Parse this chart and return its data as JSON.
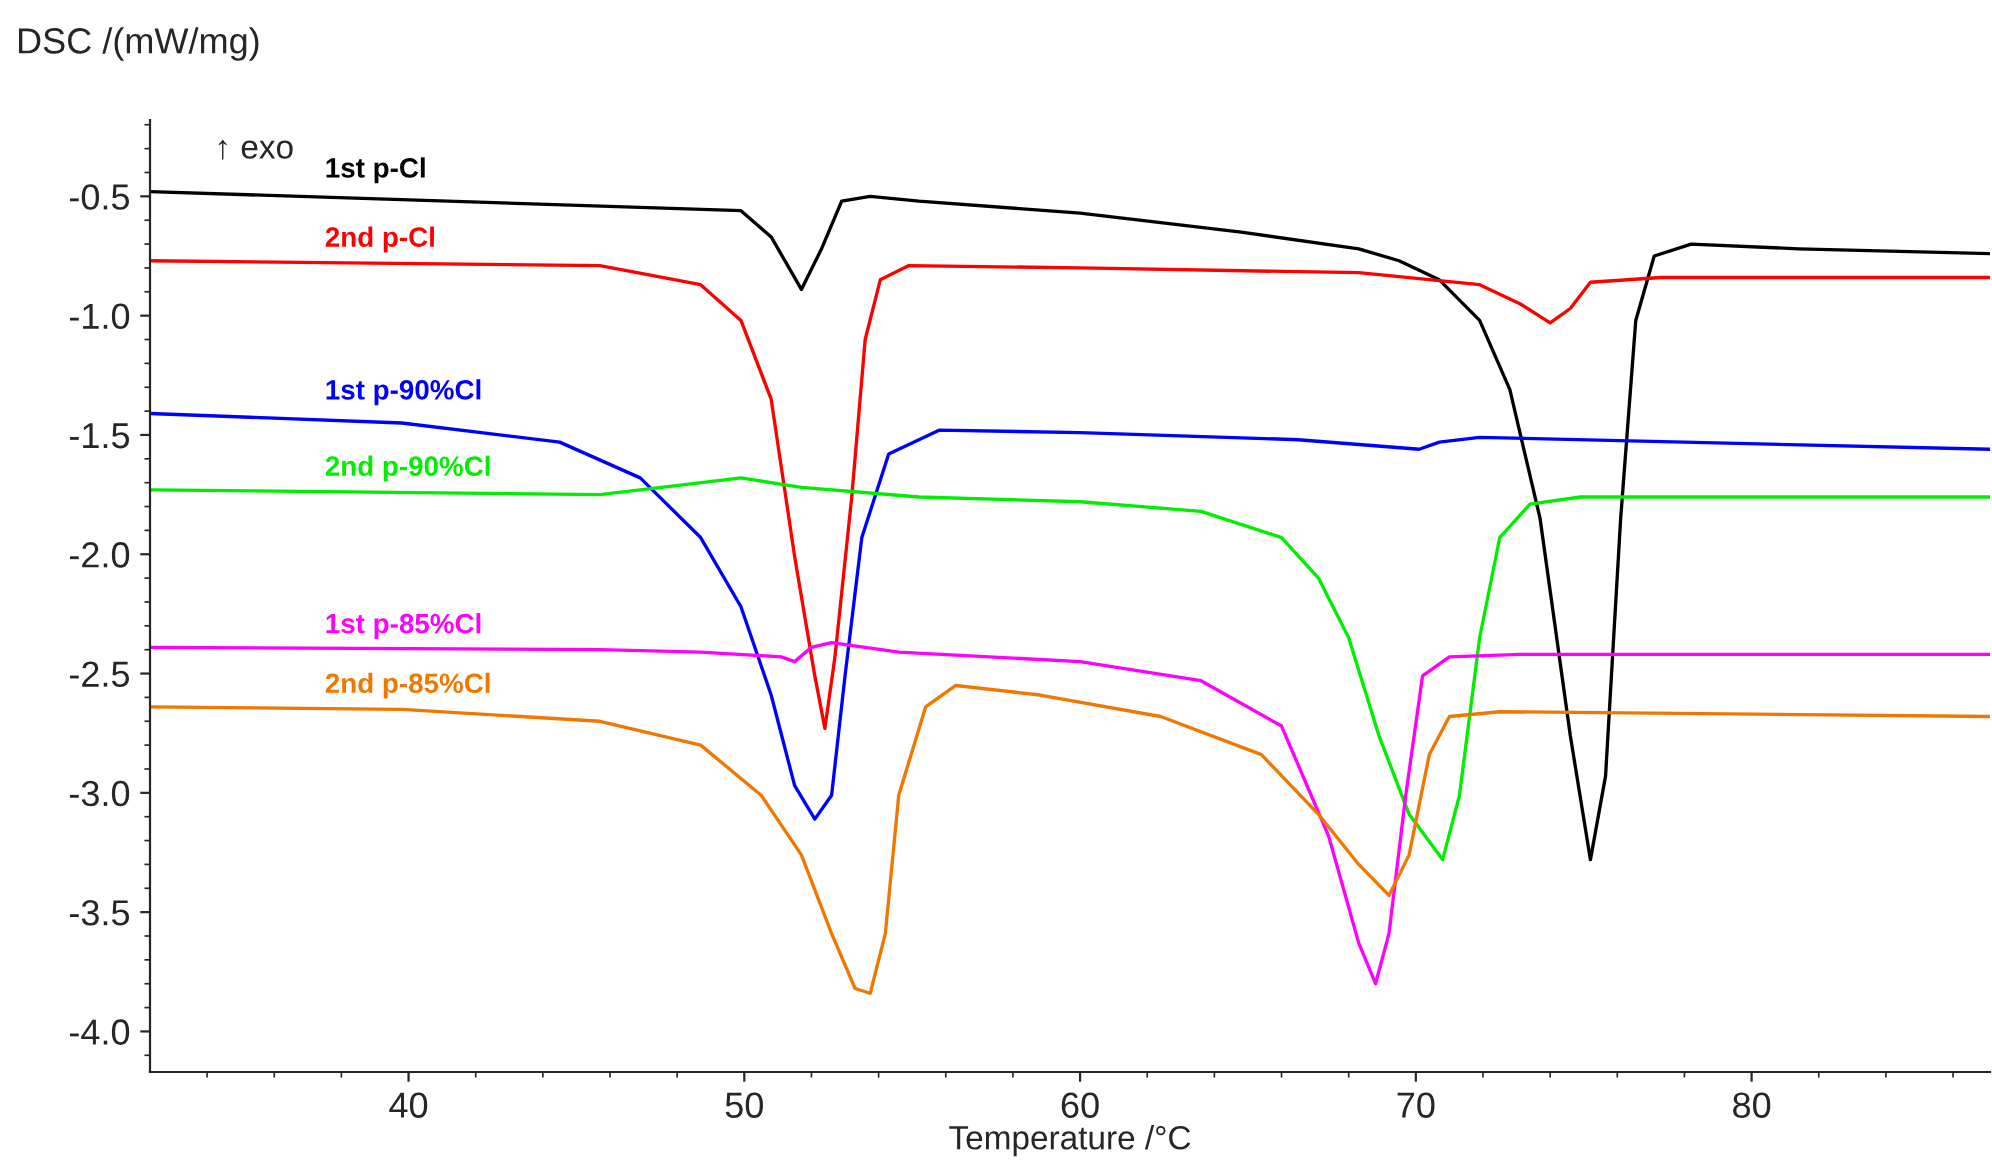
{
  "chart_data": {
    "type": "line",
    "xlabel": "Temperature /°C",
    "ylabel": "DSC /(mW/mg)",
    "annotations": [
      "↑ exo"
    ],
    "xlim": [
      32.3,
      87.1
    ],
    "ylim": [
      -4.17,
      -0.18
    ],
    "xticks": [
      40,
      50,
      60,
      70,
      80
    ],
    "yticks": [
      -0.5,
      {
        "value": -1,
        "label": "-1.0"
      },
      -1.5,
      {
        "value": -2,
        "label": "-2.0"
      },
      -2.5,
      {
        "value": -3,
        "label": "-3.0"
      },
      -3.5,
      {
        "value": -4,
        "label": "-4.0"
      }
    ],
    "grid": false,
    "legend": false,
    "marker": "none",
    "line_style": "solid",
    "series": [
      {
        "name": "1st p-Cl",
        "color": "#000000",
        "x": [
          32.3,
          49.9,
          50.8,
          51.7,
          52.3,
          52.9,
          53.75,
          55.2,
          60,
          64.8,
          68.3,
          69.5,
          70.7,
          71.9,
          72.8,
          73.7,
          74.6,
          75.2,
          75.65,
          76.1,
          76.55,
          77.1,
          78.2,
          81.4,
          87.1
        ],
        "values": [
          -0.48,
          -0.56,
          -0.67,
          -0.89,
          -0.72,
          -0.52,
          -0.5,
          -0.52,
          -0.57,
          -0.65,
          -0.72,
          -0.77,
          -0.85,
          -1.02,
          -1.31,
          -1.85,
          -2.76,
          -3.28,
          -2.93,
          -1.85,
          -1.02,
          -0.75,
          -0.7,
          -0.72,
          -0.74
        ]
      },
      {
        "name": "2nd p-Cl",
        "color": "#ff0000",
        "x": [
          32.3,
          45.7,
          48.7,
          49.9,
          50.8,
          51.5,
          52.1,
          52.4,
          52.7,
          53.2,
          53.6,
          54.05,
          54.9,
          60,
          68.3,
          71.9,
          73.1,
          74.0,
          74.6,
          75.2,
          77.3,
          87.1
        ],
        "values": [
          -0.77,
          -0.79,
          -0.87,
          -1.02,
          -1.35,
          -2.01,
          -2.51,
          -2.73,
          -2.43,
          -1.76,
          -1.1,
          -0.85,
          -0.79,
          -0.8,
          -0.82,
          -0.87,
          -0.95,
          -1.03,
          -0.97,
          -0.86,
          -0.84,
          -0.84
        ]
      },
      {
        "name": "1st p-90%Cl",
        "color": "#0000ff",
        "x": [
          32.3,
          39.8,
          44.5,
          46.9,
          48.7,
          49.9,
          50.8,
          51.5,
          52.1,
          52.6,
          53.0,
          53.5,
          54.3,
          55.8,
          60,
          66.5,
          70.1,
          70.7,
          71.9,
          87.1
        ],
        "values": [
          -1.41,
          -1.45,
          -1.53,
          -1.68,
          -1.93,
          -2.22,
          -2.59,
          -2.97,
          -3.11,
          -3.01,
          -2.51,
          -1.93,
          -1.58,
          -1.48,
          -1.49,
          -1.52,
          -1.56,
          -1.53,
          -1.51,
          -1.56
        ]
      },
      {
        "name": "2nd p-90%Cl",
        "color": "#00ee00",
        "x": [
          32.3,
          45.7,
          48.1,
          49.9,
          51.7,
          55.2,
          60,
          63.6,
          66.0,
          67.1,
          68.0,
          68.9,
          69.8,
          70.8,
          71.3,
          71.9,
          72.5,
          73.4,
          74.9,
          87.1
        ],
        "values": [
          -1.73,
          -1.75,
          -1.71,
          -1.68,
          -1.72,
          -1.76,
          -1.78,
          -1.82,
          -1.93,
          -2.1,
          -2.35,
          -2.76,
          -3.09,
          -3.28,
          -3.01,
          -2.35,
          -1.93,
          -1.79,
          -1.76,
          -1.76
        ]
      },
      {
        "name": "1st p-85%Cl",
        "color": "#ff00ff",
        "x": [
          32.3,
          45.7,
          48.7,
          51.1,
          51.5,
          52.0,
          52.6,
          54.6,
          60,
          63.6,
          66.0,
          67.4,
          68.3,
          68.8,
          69.2,
          69.7,
          70.2,
          71.0,
          73.1,
          87.1
        ],
        "values": [
          -2.39,
          -2.4,
          -2.41,
          -2.43,
          -2.45,
          -2.39,
          -2.37,
          -2.41,
          -2.45,
          -2.53,
          -2.72,
          -3.18,
          -3.63,
          -3.8,
          -3.59,
          -3.01,
          -2.51,
          -2.43,
          -2.42,
          -2.42
        ]
      },
      {
        "name": "2nd p-85%Cl",
        "color": "#f07800",
        "x": [
          32.3,
          39.8,
          45.7,
          48.7,
          50.5,
          51.7,
          52.6,
          53.3,
          53.75,
          54.2,
          54.6,
          55.4,
          56.3,
          58.8,
          62.4,
          65.4,
          67.1,
          68.3,
          69.2,
          69.8,
          70.4,
          71.0,
          72.5,
          87.1
        ],
        "values": [
          -2.64,
          -2.65,
          -2.7,
          -2.8,
          -3.01,
          -3.26,
          -3.59,
          -3.82,
          -3.84,
          -3.59,
          -3.01,
          -2.64,
          -2.55,
          -2.59,
          -2.68,
          -2.84,
          -3.09,
          -3.3,
          -3.43,
          -3.26,
          -2.84,
          -2.68,
          -2.66,
          -2.68
        ]
      }
    ]
  }
}
